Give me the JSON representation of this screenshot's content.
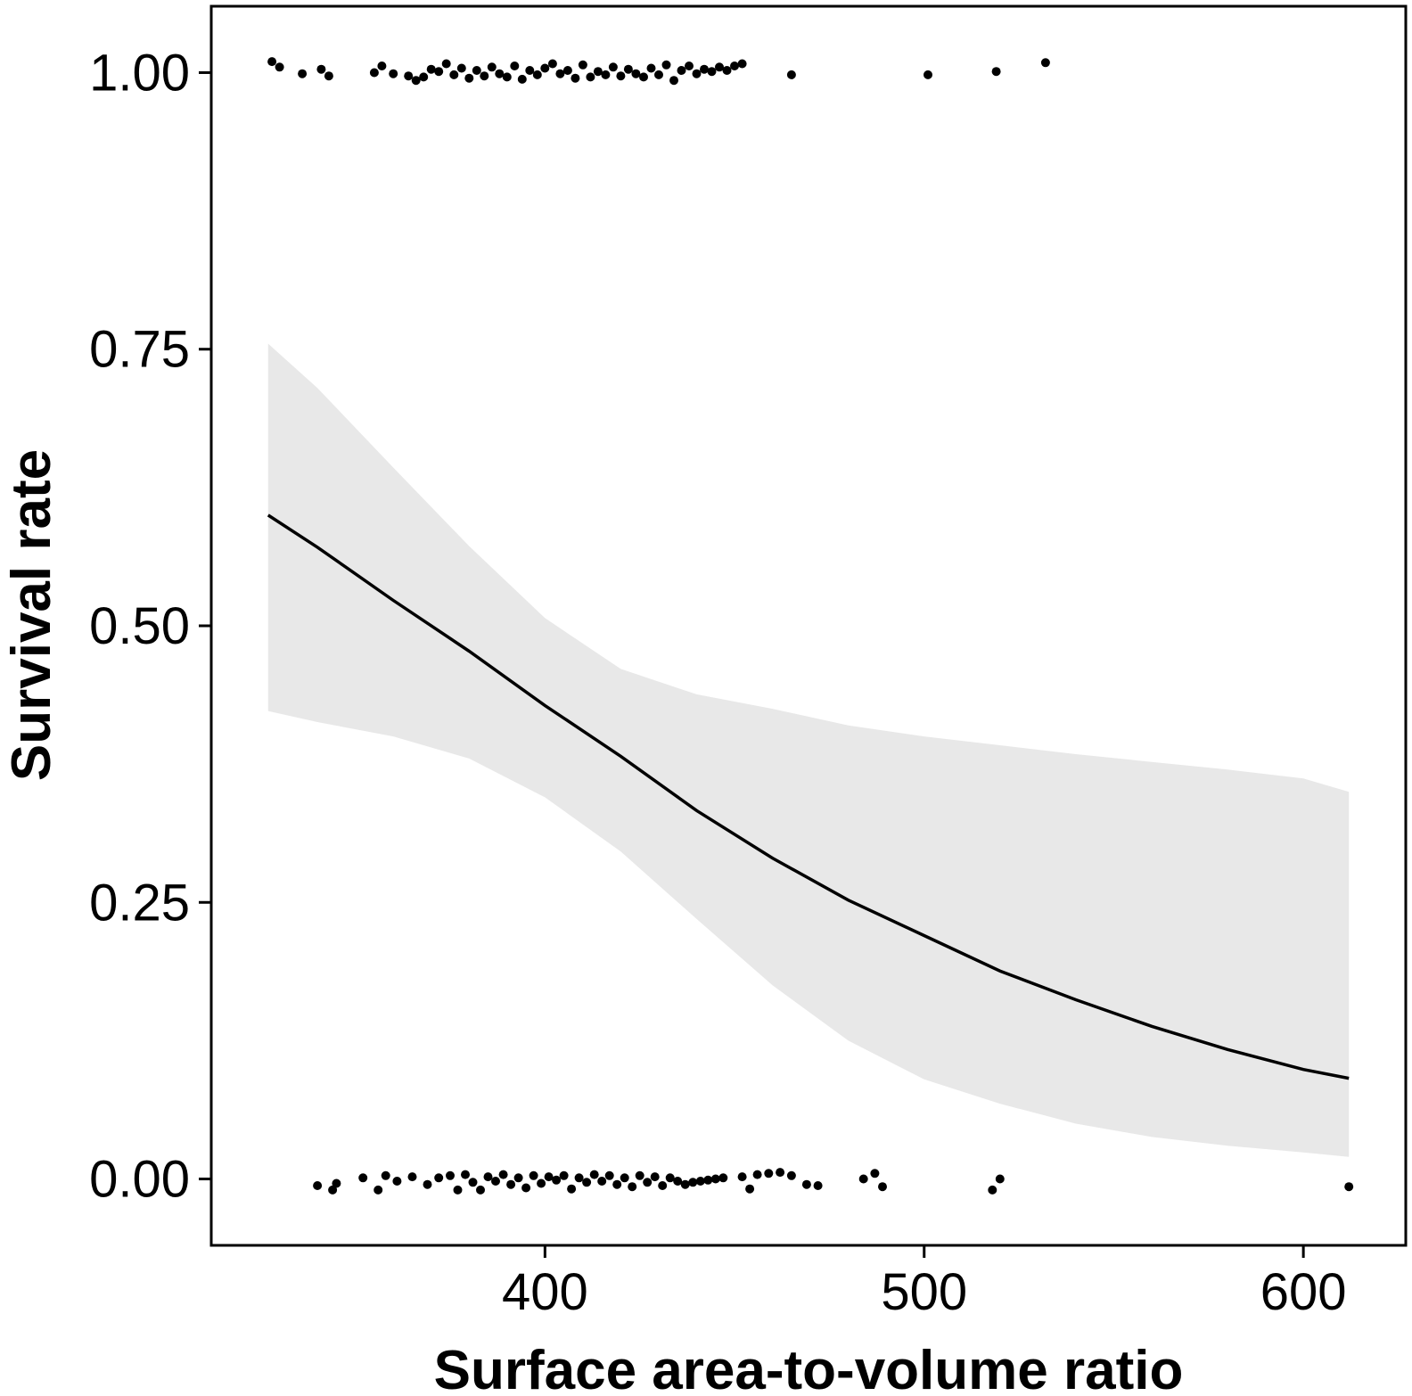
{
  "chart_data": {
    "type": "scatter",
    "title": "",
    "xlabel": "Surface area-to-volume ratio",
    "ylabel": "Survival rate",
    "xlim": [
      312,
      627
    ],
    "ylim": [
      -0.06,
      1.06
    ],
    "x_ticks": [
      400,
      500,
      600
    ],
    "x_tick_labels": [
      "400",
      "500",
      "600"
    ],
    "y_ticks": [
      0,
      0.25,
      0.5,
      0.75,
      1.0
    ],
    "y_tick_labels": [
      "0.00",
      "0.25",
      "0.50",
      "0.75",
      "1.00"
    ],
    "grid": false,
    "legend": "none",
    "colors": {
      "points": "#000000",
      "line": "#000000",
      "band": "#e8e8e8",
      "frame": "#000000"
    },
    "fitted_curve": {
      "x": [
        327,
        340,
        360,
        380,
        400,
        420,
        440,
        460,
        480,
        500,
        520,
        540,
        560,
        580,
        600,
        612
      ],
      "y": [
        0.6,
        0.571,
        0.523,
        0.477,
        0.428,
        0.382,
        0.333,
        0.29,
        0.252,
        0.22,
        0.188,
        0.162,
        0.138,
        0.117,
        0.099,
        0.091
      ]
    },
    "confidence_band": {
      "x": [
        327,
        340,
        360,
        380,
        400,
        420,
        440,
        460,
        480,
        500,
        520,
        540,
        560,
        580,
        600,
        612
      ],
      "lower": [
        0.423,
        0.413,
        0.4,
        0.38,
        0.345,
        0.296,
        0.235,
        0.175,
        0.125,
        0.09,
        0.068,
        0.05,
        0.038,
        0.03,
        0.024,
        0.02
      ],
      "upper": [
        0.755,
        0.715,
        0.643,
        0.572,
        0.507,
        0.461,
        0.438,
        0.425,
        0.41,
        0.4,
        0.392,
        0.384,
        0.377,
        0.37,
        0.362,
        0.35
      ]
    },
    "points": [
      {
        "x": 328,
        "y": 1.01
      },
      {
        "x": 330,
        "y": 1.005
      },
      {
        "x": 336,
        "y": 0.999
      },
      {
        "x": 341,
        "y": 1.003
      },
      {
        "x": 343,
        "y": 0.997
      },
      {
        "x": 355,
        "y": 1.0
      },
      {
        "x": 357,
        "y": 1.006
      },
      {
        "x": 360,
        "y": 0.999
      },
      {
        "x": 364,
        "y": 0.997
      },
      {
        "x": 366,
        "y": 0.993
      },
      {
        "x": 368,
        "y": 0.996
      },
      {
        "x": 370,
        "y": 1.003
      },
      {
        "x": 372,
        "y": 1.001
      },
      {
        "x": 374,
        "y": 1.008
      },
      {
        "x": 376,
        "y": 0.998
      },
      {
        "x": 378,
        "y": 1.004
      },
      {
        "x": 380,
        "y": 0.995
      },
      {
        "x": 382,
        "y": 1.002
      },
      {
        "x": 384,
        "y": 0.997
      },
      {
        "x": 386,
        "y": 1.005
      },
      {
        "x": 388,
        "y": 0.999
      },
      {
        "x": 390,
        "y": 0.996
      },
      {
        "x": 392,
        "y": 1.006
      },
      {
        "x": 394,
        "y": 0.994
      },
      {
        "x": 396,
        "y": 1.002
      },
      {
        "x": 398,
        "y": 0.998
      },
      {
        "x": 400,
        "y": 1.004
      },
      {
        "x": 402,
        "y": 1.008
      },
      {
        "x": 404,
        "y": 0.999
      },
      {
        "x": 406,
        "y": 1.002
      },
      {
        "x": 408,
        "y": 0.995
      },
      {
        "x": 410,
        "y": 1.007
      },
      {
        "x": 412,
        "y": 0.996
      },
      {
        "x": 414,
        "y": 1.001
      },
      {
        "x": 416,
        "y": 0.998
      },
      {
        "x": 418,
        "y": 1.005
      },
      {
        "x": 420,
        "y": 0.997
      },
      {
        "x": 422,
        "y": 1.003
      },
      {
        "x": 424,
        "y": 0.999
      },
      {
        "x": 426,
        "y": 0.996
      },
      {
        "x": 428,
        "y": 1.004
      },
      {
        "x": 430,
        "y": 0.998
      },
      {
        "x": 432,
        "y": 1.007
      },
      {
        "x": 434,
        "y": 0.993
      },
      {
        "x": 436,
        "y": 1.002
      },
      {
        "x": 438,
        "y": 1.006
      },
      {
        "x": 440,
        "y": 0.999
      },
      {
        "x": 442,
        "y": 1.003
      },
      {
        "x": 444,
        "y": 1.001
      },
      {
        "x": 446,
        "y": 1.005
      },
      {
        "x": 448,
        "y": 1.002
      },
      {
        "x": 450,
        "y": 1.006
      },
      {
        "x": 452,
        "y": 1.008
      },
      {
        "x": 465,
        "y": 0.998
      },
      {
        "x": 501,
        "y": 0.998
      },
      {
        "x": 519,
        "y": 1.001
      },
      {
        "x": 532,
        "y": 1.009
      },
      {
        "x": 340,
        "y": -0.006
      },
      {
        "x": 344,
        "y": -0.01
      },
      {
        "x": 345,
        "y": -0.004
      },
      {
        "x": 352,
        "y": 0.001
      },
      {
        "x": 356,
        "y": -0.01
      },
      {
        "x": 358,
        "y": 0.003
      },
      {
        "x": 361,
        "y": -0.002
      },
      {
        "x": 365,
        "y": 0.002
      },
      {
        "x": 369,
        "y": -0.005
      },
      {
        "x": 372,
        "y": 0.001
      },
      {
        "x": 375,
        "y": 0.003
      },
      {
        "x": 377,
        "y": -0.01
      },
      {
        "x": 379,
        "y": 0.004
      },
      {
        "x": 381,
        "y": -0.003
      },
      {
        "x": 383,
        "y": -0.01
      },
      {
        "x": 385,
        "y": 0.002
      },
      {
        "x": 387,
        "y": -0.002
      },
      {
        "x": 389,
        "y": 0.004
      },
      {
        "x": 391,
        "y": -0.005
      },
      {
        "x": 393,
        "y": 0.001
      },
      {
        "x": 395,
        "y": -0.008
      },
      {
        "x": 397,
        "y": 0.003
      },
      {
        "x": 399,
        "y": -0.004
      },
      {
        "x": 401,
        "y": 0.002
      },
      {
        "x": 403,
        "y": -0.001
      },
      {
        "x": 405,
        "y": 0.003
      },
      {
        "x": 407,
        "y": -0.009
      },
      {
        "x": 409,
        "y": 0.001
      },
      {
        "x": 411,
        "y": -0.003
      },
      {
        "x": 413,
        "y": 0.004
      },
      {
        "x": 415,
        "y": -0.002
      },
      {
        "x": 417,
        "y": 0.003
      },
      {
        "x": 419,
        "y": -0.005
      },
      {
        "x": 421,
        "y": 0.001
      },
      {
        "x": 423,
        "y": -0.007
      },
      {
        "x": 425,
        "y": 0.003
      },
      {
        "x": 427,
        "y": -0.003
      },
      {
        "x": 429,
        "y": 0.002
      },
      {
        "x": 431,
        "y": -0.006
      },
      {
        "x": 433,
        "y": 0.001
      },
      {
        "x": 435,
        "y": -0.002
      },
      {
        "x": 437,
        "y": -0.005
      },
      {
        "x": 439,
        "y": -0.003
      },
      {
        "x": 441,
        "y": -0.002
      },
      {
        "x": 443,
        "y": -0.001
      },
      {
        "x": 445,
        "y": 0.0
      },
      {
        "x": 447,
        "y": 0.001
      },
      {
        "x": 452,
        "y": 0.002
      },
      {
        "x": 454,
        "y": -0.009
      },
      {
        "x": 456,
        "y": 0.004
      },
      {
        "x": 459,
        "y": 0.005
      },
      {
        "x": 462,
        "y": 0.006
      },
      {
        "x": 465,
        "y": 0.003
      },
      {
        "x": 469,
        "y": -0.005
      },
      {
        "x": 472,
        "y": -0.006
      },
      {
        "x": 484,
        "y": 0.0
      },
      {
        "x": 487,
        "y": 0.005
      },
      {
        "x": 489,
        "y": -0.007
      },
      {
        "x": 518,
        "y": -0.01
      },
      {
        "x": 520,
        "y": 0.0
      },
      {
        "x": 612,
        "y": -0.007
      }
    ]
  }
}
